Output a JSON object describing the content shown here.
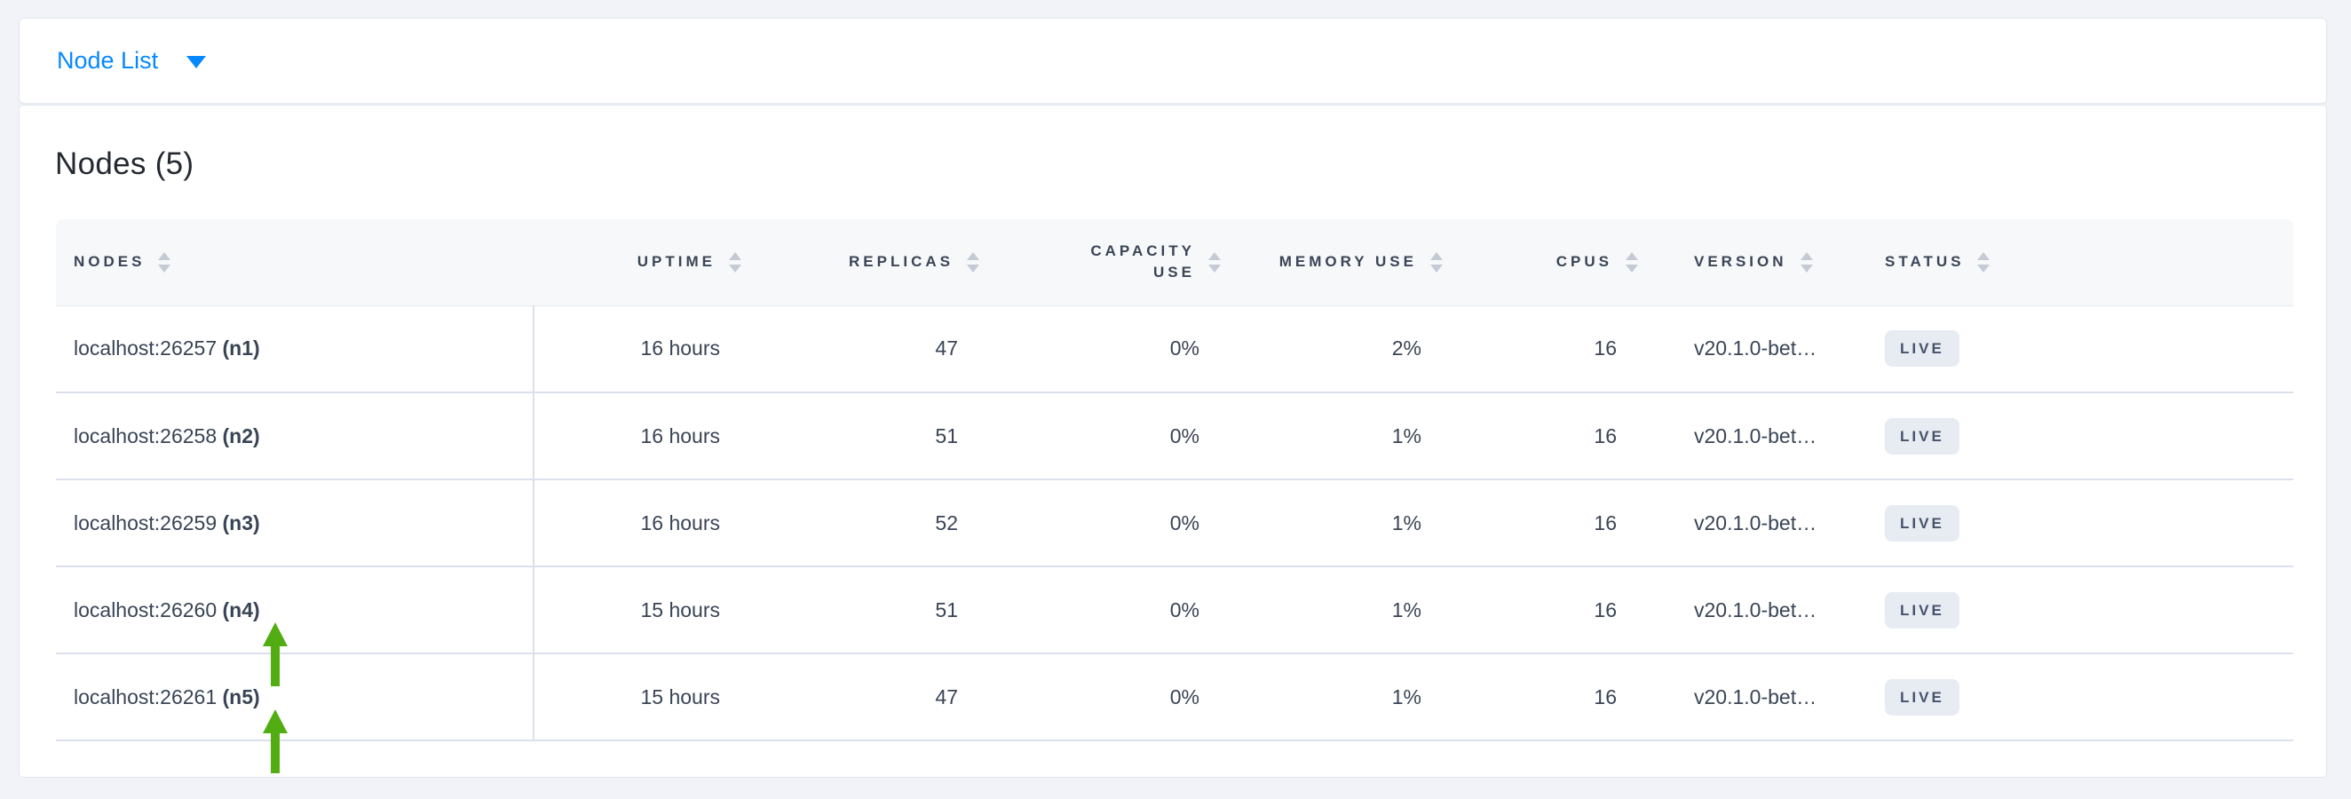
{
  "page": {
    "background_color": "#f1f3f8",
    "accent_blue": "#0788ff",
    "annotation_green": "#52ad12"
  },
  "view_selector": {
    "label": "Node List",
    "caret_icon": "caret-down"
  },
  "heading": "Nodes (5)",
  "table": {
    "columns": [
      {
        "key": "nodes",
        "label": "NODES",
        "align": "left"
      },
      {
        "key": "uptime",
        "label": "UPTIME",
        "align": "right"
      },
      {
        "key": "replicas",
        "label": "REPLICAS",
        "align": "right"
      },
      {
        "key": "capacity_use",
        "label": "CAPACITY USE",
        "align": "right",
        "wrap": true
      },
      {
        "key": "memory_use",
        "label": "MEMORY USE",
        "align": "right"
      },
      {
        "key": "cpus",
        "label": "CPUS",
        "align": "right"
      },
      {
        "key": "version",
        "label": "VERSION",
        "align": "left"
      },
      {
        "key": "status",
        "label": "STATUS",
        "align": "left"
      }
    ],
    "rows": [
      {
        "address": "localhost:26257",
        "node_id": "(n1)",
        "uptime": "16 hours",
        "replicas": "47",
        "capacity_use": "0%",
        "memory_use": "2%",
        "cpus": "16",
        "version": "v20.1.0-bet…",
        "status": "LIVE",
        "annotated": false
      },
      {
        "address": "localhost:26258",
        "node_id": "(n2)",
        "uptime": "16 hours",
        "replicas": "51",
        "capacity_use": "0%",
        "memory_use": "1%",
        "cpus": "16",
        "version": "v20.1.0-bet…",
        "status": "LIVE",
        "annotated": false
      },
      {
        "address": "localhost:26259",
        "node_id": "(n3)",
        "uptime": "16 hours",
        "replicas": "52",
        "capacity_use": "0%",
        "memory_use": "1%",
        "cpus": "16",
        "version": "v20.1.0-bet…",
        "status": "LIVE",
        "annotated": false
      },
      {
        "address": "localhost:26260",
        "node_id": "(n4)",
        "uptime": "15 hours",
        "replicas": "51",
        "capacity_use": "0%",
        "memory_use": "1%",
        "cpus": "16",
        "version": "v20.1.0-bet…",
        "status": "LIVE",
        "annotated": true
      },
      {
        "address": "localhost:26261",
        "node_id": "(n5)",
        "uptime": "15 hours",
        "replicas": "47",
        "capacity_use": "0%",
        "memory_use": "1%",
        "cpus": "16",
        "version": "v20.1.0-bet…",
        "status": "LIVE",
        "annotated": true
      }
    ],
    "status_badge_bg": "#e7ebf2"
  }
}
